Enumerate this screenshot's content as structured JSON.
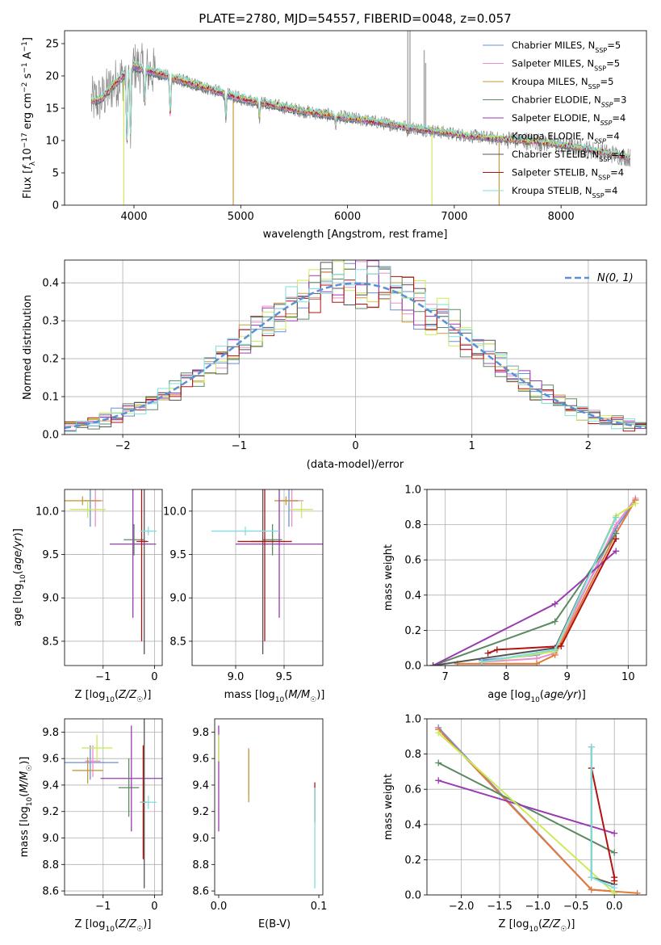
{
  "figure": {
    "title": "PLATE=2780, MJD=54557, FIBERID=0048, z=0.057",
    "palette": [
      {
        "name": "Chabrier MILES",
        "color": "#6a8fd8"
      },
      {
        "name": "Salpeter MILES",
        "color": "#ee8ec8"
      },
      {
        "name": "Kroupa MILES",
        "color": "#c79a3a"
      },
      {
        "name": "Chabrier ELODIE",
        "color": "#5b8a62"
      },
      {
        "name": "Salpeter ELODIE",
        "color": "#9a3ab2"
      },
      {
        "name": "Kroupa ELODIE",
        "color": "#cdea5a"
      },
      {
        "name": "Chabrier STELIB",
        "color": "#555555"
      },
      {
        "name": "Salpeter STELIB",
        "color": "#b31212"
      },
      {
        "name": "Kroupa STELIB",
        "color": "#82dede"
      }
    ],
    "extra_colors": {
      "orange": "#e07b39",
      "data_gray": "#888888",
      "normal_dash": "#5b8fd6"
    }
  },
  "chart_data": [
    {
      "id": "spectrum",
      "type": "line",
      "title": "PLATE=2780, MJD=54557, FIBERID=0048, z=0.057",
      "xlabel": "wavelength [Angstrom, rest frame]",
      "ylabel_main": "Flux [",
      "xlim": [
        3350,
        8800
      ],
      "ylim": [
        0,
        27
      ],
      "xticks": [
        4000,
        5000,
        6000,
        7000,
        8000
      ],
      "yticks": [
        0,
        5,
        10,
        15,
        20,
        25
      ],
      "grid": false,
      "continuum_x": [
        3600,
        3700,
        3800,
        3900,
        4000,
        4100,
        4300,
        4500,
        4800,
        5000,
        5300,
        5600,
        6000,
        6300,
        6600,
        7000,
        7400,
        7800,
        8200,
        8700
      ],
      "continuum_y": [
        16.0,
        16.5,
        18.5,
        20.0,
        21.5,
        21.0,
        20.0,
        19.0,
        17.5,
        16.5,
        15.5,
        14.5,
        13.5,
        12.8,
        12.0,
        11.0,
        10.3,
        9.8,
        8.8,
        7.2
      ],
      "legend": {
        "placement": "upper right",
        "entries": [
          {
            "label": "Chabrier MILES, N",
            "sub": "SSP",
            "tail": "=5"
          },
          {
            "label": "Salpeter MILES, N",
            "sub": "SSP",
            "tail": "=5"
          },
          {
            "label": "Kroupa MILES, N",
            "sub": "SSP",
            "tail": "=5"
          },
          {
            "label": "Chabrier ELODIE, N",
            "sub": "SSP",
            "tail": "=3"
          },
          {
            "label": "Salpeter ELODIE, N",
            "sub": "SSP",
            "tail": "=4"
          },
          {
            "label": "Kroupa ELODIE, N",
            "sub": "SSP",
            "tail": "=4"
          },
          {
            "label": "Chabrier STELIB, N",
            "sub": "SSP",
            "tail": "=4"
          },
          {
            "label": "Salpeter STELIB, N",
            "sub": "SSP",
            "tail": "=4"
          },
          {
            "label": "Kroupa STELIB, N",
            "sub": "SSP",
            "tail": "=4"
          }
        ]
      }
    },
    {
      "id": "residuals",
      "type": "line",
      "xlabel": "(data-model)/error",
      "ylabel": "Normed distribution",
      "xlim": [
        -2.5,
        2.5
      ],
      "ylim": [
        0,
        0.46
      ],
      "xticks": [
        -2,
        -1,
        0,
        1,
        2
      ],
      "yticks": [
        0.0,
        0.1,
        0.2,
        0.3,
        0.4
      ],
      "grid": true,
      "legend": {
        "placement": "upper right",
        "entry": "N(0, 1)"
      }
    },
    {
      "id": "age_vs_Z",
      "type": "scatter",
      "xlabel": "Z [log10(Z/Z☉)]",
      "ylabel": "age  [log10(age/yr)]",
      "xlim": [
        -1.75,
        0.15
      ],
      "ylim": [
        8.22,
        10.25
      ],
      "xticks": [
        -1,
        0
      ],
      "yticks": [
        8.5,
        9.0,
        9.5,
        10.0
      ],
      "grid": true,
      "points": [
        {
          "c": 0,
          "x": -1.25,
          "y": 10.12,
          "xe": 0.12,
          "ye": 0.3
        },
        {
          "c": 1,
          "x": -1.15,
          "y": 10.12,
          "xe": 0.15,
          "ye": 0.3
        },
        {
          "c": 2,
          "x": -1.4,
          "y": 10.12,
          "xe": 0.35,
          "ye": 0.05
        },
        {
          "c": 3,
          "x": -0.4,
          "y": 9.67,
          "xe": 0.2,
          "ye": 0.18
        },
        {
          "c": 4,
          "x": -0.42,
          "y": 9.62,
          "xe": 0.45,
          "ye": 0.85
        },
        {
          "c": 5,
          "x": -1.3,
          "y": 10.02,
          "xe": 0.35,
          "ye": 0.1
        },
        {
          "c": 6,
          "x": -0.2,
          "y": 9.65,
          "xe": 0.08,
          "ye": 1.3
        },
        {
          "c": 7,
          "x": -0.25,
          "y": 9.65,
          "xe": 0.1,
          "ye": 1.15
        },
        {
          "c": 8,
          "x": -0.12,
          "y": 9.77,
          "xe": 0.16,
          "ye": 0.05
        }
      ]
    },
    {
      "id": "age_vs_mass",
      "type": "scatter",
      "xlabel": "mass [log10(M/M☉)]",
      "ylabel": "",
      "xlim": [
        8.55,
        9.9
      ],
      "ylim": [
        8.22,
        10.25
      ],
      "xticks": [
        9.0,
        9.5
      ],
      "yticks": [
        8.5,
        9.0,
        9.5,
        10.0
      ],
      "grid": true,
      "points": [
        {
          "c": 0,
          "x": 9.55,
          "y": 10.12,
          "xe": 0.1,
          "ye": 0.3
        },
        {
          "c": 1,
          "x": 9.58,
          "y": 10.12,
          "xe": 0.12,
          "ye": 0.3
        },
        {
          "c": 2,
          "x": 9.52,
          "y": 10.12,
          "xe": 0.12,
          "ye": 0.05
        },
        {
          "c": 3,
          "x": 9.38,
          "y": 9.67,
          "xe": 0.1,
          "ye": 0.18
        },
        {
          "c": 4,
          "x": 9.45,
          "y": 9.62,
          "xe": 0.45,
          "ye": 0.85
        },
        {
          "c": 5,
          "x": 9.68,
          "y": 10.02,
          "xe": 0.12,
          "ye": 0.1
        },
        {
          "c": 6,
          "x": 9.28,
          "y": 9.65,
          "xe": 0.12,
          "ye": 1.3
        },
        {
          "c": 7,
          "x": 9.3,
          "y": 9.65,
          "xe": 0.28,
          "ye": 1.15
        },
        {
          "c": 8,
          "x": 9.1,
          "y": 9.77,
          "xe": 0.35,
          "ye": 0.05
        }
      ]
    },
    {
      "id": "massweight_vs_age",
      "type": "line",
      "xlabel": "age  [log10(age/yr)]",
      "ylabel": "mass weight",
      "xlim": [
        6.7,
        10.3
      ],
      "ylim": [
        0,
        1
      ],
      "xticks": [
        7,
        8,
        9,
        10
      ],
      "yticks": [
        0.0,
        0.2,
        0.4,
        0.6,
        0.8,
        1.0
      ],
      "grid": true,
      "series": [
        {
          "c": 0,
          "x": [
            7.6,
            8.5,
            8.8,
            9.8,
            10.12
          ],
          "y": [
            0.03,
            0.06,
            0.09,
            0.78,
            0.94
          ]
        },
        {
          "c": 1,
          "x": [
            7.6,
            8.5,
            8.8,
            9.8,
            10.12
          ],
          "y": [
            0.02,
            0.04,
            0.07,
            0.8,
            0.95
          ]
        },
        {
          "c": "orange",
          "x": [
            7.2,
            8.5,
            8.8,
            9.8,
            10.12
          ],
          "y": [
            0.01,
            0.01,
            0.06,
            0.75,
            0.94
          ]
        },
        {
          "c": 3,
          "x": [
            6.8,
            8.8,
            9.8
          ],
          "y": [
            0.0,
            0.25,
            0.75
          ]
        },
        {
          "c": 4,
          "x": [
            6.8,
            8.8,
            9.8
          ],
          "y": [
            0.0,
            0.35,
            0.65
          ]
        },
        {
          "c": 5,
          "x": [
            7.6,
            8.8,
            9.8,
            10.12
          ],
          "y": [
            0.02,
            0.08,
            0.85,
            0.92
          ]
        },
        {
          "c": 6,
          "x": [
            6.8,
            8.8,
            9.8
          ],
          "y": [
            0.0,
            0.1,
            0.84
          ]
        },
        {
          "c": 7,
          "x": [
            7.7,
            7.85,
            8.9,
            9.8
          ],
          "y": [
            0.07,
            0.09,
            0.11,
            0.72
          ]
        },
        {
          "c": 8,
          "x": [
            7.6,
            8.8,
            9.8
          ],
          "y": [
            0.02,
            0.09,
            0.84
          ]
        }
      ]
    },
    {
      "id": "mass_vs_Z",
      "type": "scatter",
      "xlabel": "Z [log10(Z/Z☉)]",
      "ylabel": "mass [log10(M/M☉)]",
      "xlim": [
        -1.75,
        0.15
      ],
      "ylim": [
        8.57,
        9.9
      ],
      "xticks": [
        -1,
        0
      ],
      "yticks": [
        8.6,
        8.8,
        9.0,
        9.2,
        9.4,
        9.6,
        9.8
      ],
      "grid": true,
      "points": [
        {
          "c": 0,
          "x": -1.25,
          "y": 9.57,
          "xe": 0.55,
          "ye": 0.13
        },
        {
          "c": 1,
          "x": -1.2,
          "y": 9.58,
          "xe": 0.15,
          "ye": 0.12
        },
        {
          "c": 2,
          "x": -1.3,
          "y": 9.51,
          "xe": 0.3,
          "ye": 0.1
        },
        {
          "c": 3,
          "x": -0.5,
          "y": 9.38,
          "xe": 0.2,
          "ye": 0.22
        },
        {
          "c": 4,
          "x": -0.45,
          "y": 9.45,
          "xe": 0.6,
          "ye": 0.4
        },
        {
          "c": 5,
          "x": -1.12,
          "y": 9.68,
          "xe": 0.3,
          "ye": 0.1
        },
        {
          "c": 6,
          "x": -0.2,
          "y": 9.27,
          "xe": 0.06,
          "ye": 0.65
        },
        {
          "c": 7,
          "x": -0.22,
          "y": 9.27,
          "xe": 0.06,
          "ye": 0.43
        },
        {
          "c": 8,
          "x": -0.12,
          "y": 9.27,
          "xe": 0.16,
          "ye": 0.05
        }
      ]
    },
    {
      "id": "mass_vs_EBV",
      "type": "scatter",
      "xlabel": "E(B-V)",
      "ylabel": "",
      "xlim": [
        -0.004,
        0.104
      ],
      "ylim": [
        8.57,
        9.9
      ],
      "xticks": [
        0.0,
        0.1
      ],
      "yticks": [
        8.6,
        8.8,
        9.0,
        9.2,
        9.4,
        9.6,
        9.8
      ],
      "grid": false,
      "points": [
        {
          "c": 4,
          "x": 0.0,
          "y": 9.45,
          "ye": 0.4
        },
        {
          "c": 5,
          "x": 0.0,
          "y": 9.68,
          "ye": 0.1
        },
        {
          "c": 1,
          "x": 0.03,
          "y": 9.5,
          "ye": 0.18
        },
        {
          "c": 2,
          "x": 0.03,
          "y": 9.47,
          "ye": 0.2
        },
        {
          "c": 7,
          "x": 0.096,
          "y": 9.27,
          "ye": 0.15
        },
        {
          "c": 8,
          "x": 0.096,
          "y": 9.0,
          "ye": 0.38
        }
      ]
    },
    {
      "id": "massweight_vs_Z",
      "type": "line",
      "xlabel": "Z [log10(Z/Z☉)]",
      "ylabel": "mass weight",
      "xlim": [
        -2.45,
        0.42
      ],
      "ylim": [
        0,
        1
      ],
      "xticks": [
        -2.0,
        -1.5,
        -1.0,
        -0.5,
        0.0
      ],
      "yticks": [
        0.0,
        0.2,
        0.4,
        0.6,
        0.8,
        1.0
      ],
      "grid": true,
      "series": [
        {
          "c": 0,
          "x": [
            -2.3,
            -0.3,
            0.0
          ],
          "y": [
            0.95,
            0.03,
            0.02
          ]
        },
        {
          "c": 1,
          "x": [
            -2.3,
            -0.3,
            0.0
          ],
          "y": [
            0.94,
            0.03,
            0.02
          ]
        },
        {
          "c": "orange",
          "x": [
            -2.3,
            -0.3,
            0.3
          ],
          "y": [
            0.94,
            0.03,
            0.01
          ]
        },
        {
          "c": 3,
          "x": [
            -2.3,
            0.0
          ],
          "y": [
            0.75,
            0.24
          ]
        },
        {
          "c": 4,
          "x": [
            -2.3,
            0.0
          ],
          "y": [
            0.65,
            0.35
          ]
        },
        {
          "c": 5,
          "x": [
            -2.3,
            0.0
          ],
          "y": [
            0.92,
            0.01
          ]
        },
        {
          "c": 6,
          "x": [
            -0.3,
            -0.3,
            0.0
          ],
          "y": [
            0.84,
            0.1,
            0.06
          ]
        },
        {
          "c": 7,
          "x": [
            -0.3,
            0.0,
            0.0
          ],
          "y": [
            0.72,
            0.1,
            0.08
          ]
        },
        {
          "c": 8,
          "x": [
            -0.3,
            -0.3,
            0.0
          ],
          "y": [
            0.84,
            0.1,
            0.04
          ]
        }
      ]
    }
  ]
}
